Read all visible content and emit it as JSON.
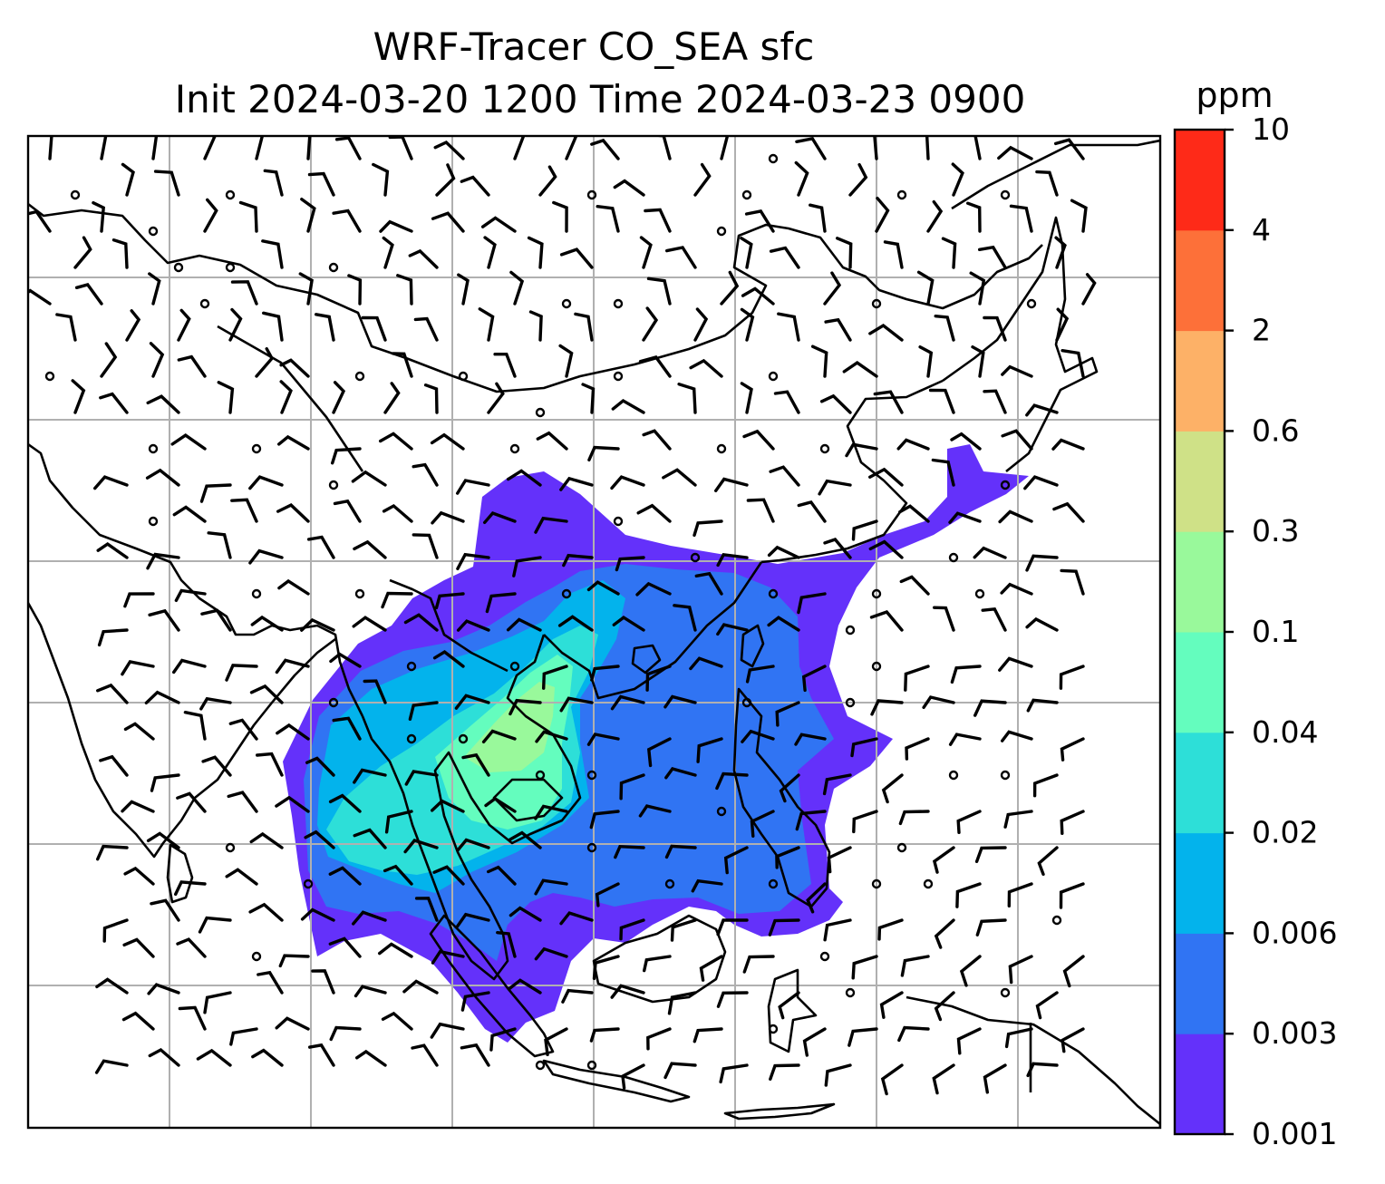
{
  "figure": {
    "title_line1": "WRF-Tracer CO_SEA sfc",
    "title_line2": "Init 2024-03-20 1200 Time 2024-03-23 0900"
  },
  "colorbar": {
    "unit": "ppm",
    "ticks": [
      "0.001",
      "0.003",
      "0.006",
      "0.02",
      "0.04",
      "0.1",
      "0.3",
      "0.6",
      "2",
      "4",
      "10"
    ],
    "colors": [
      "#6431fa",
      "#3074f3",
      "#03b3ec",
      "#2ddfd8",
      "#64fdbe",
      "#99f99b",
      "#cfe187",
      "#fdb167",
      "#fd7039",
      "#fe2a18"
    ]
  },
  "map": {
    "field": "CO_SEA tracer concentration",
    "level": "sfc",
    "overlay": "surface wind barbs",
    "gridlines": true,
    "coastlines": true
  }
}
